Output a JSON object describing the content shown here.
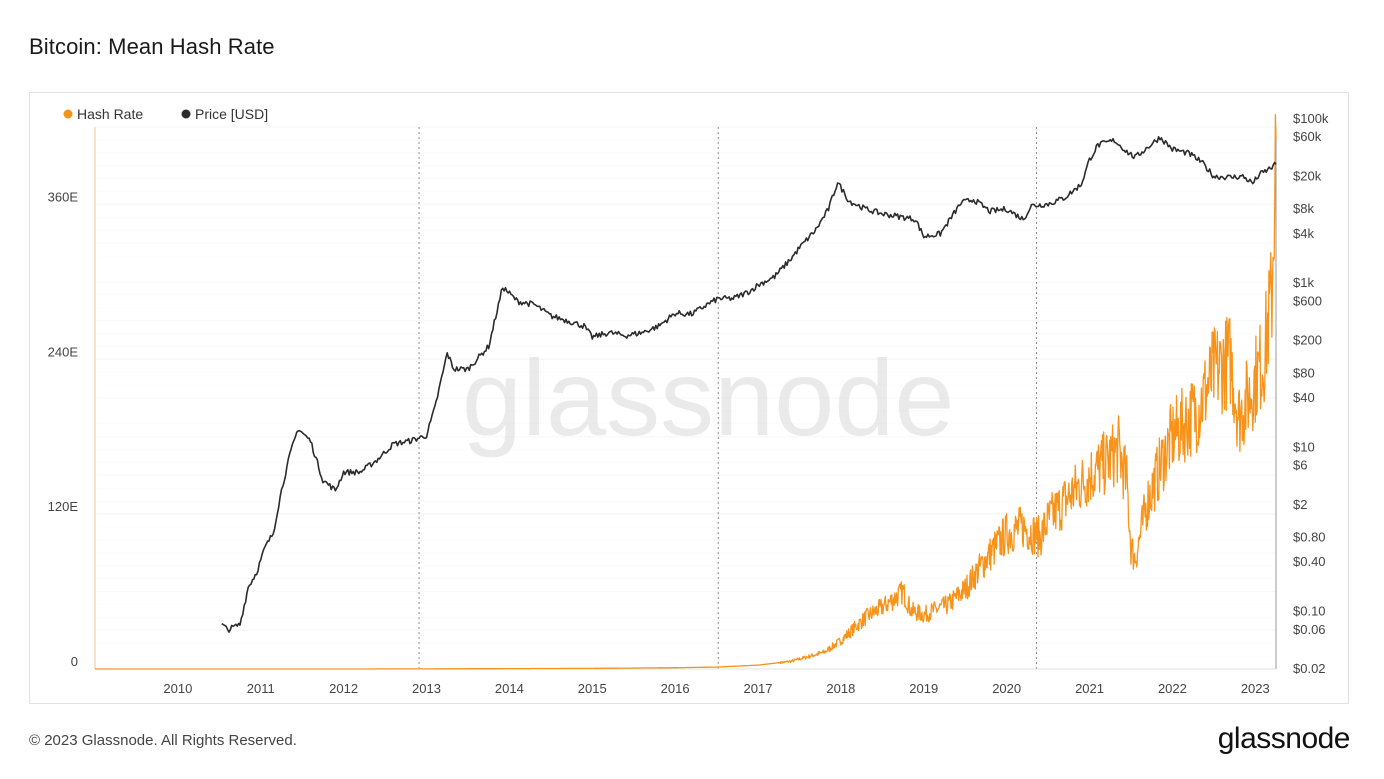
{
  "page": {
    "title": "Bitcoin: Mean Hash Rate",
    "copyright": "© 2023 Glassnode. All Rights Reserved.",
    "logo_text": "glassnode",
    "watermark_text": "glassnode"
  },
  "chart_data": {
    "type": "line",
    "title": "Bitcoin: Mean Hash Rate",
    "legend_position": "top-left",
    "grid": true,
    "x_ticks": [
      "2010",
      "2011",
      "2012",
      "2013",
      "2014",
      "2015",
      "2016",
      "2017",
      "2018",
      "2019",
      "2020",
      "2021",
      "2022",
      "2023"
    ],
    "xlim": [
      2009.0,
      2023.25
    ],
    "halving_lines": [
      2012.91,
      2016.52,
      2020.36
    ],
    "y_left": {
      "ticks": [
        "0",
        "120E",
        "240E",
        "360E"
      ],
      "tick_values": [
        0,
        120,
        240,
        360
      ],
      "ylim": [
        0,
        420
      ],
      "unit": "E"
    },
    "y_right": {
      "scale": "log",
      "ticks": [
        "$100k",
        "$60k",
        "$20k",
        "$8k",
        "$4k",
        "$1k",
        "$600",
        "$200",
        "$80",
        "$40",
        "$10",
        "$6",
        "$2",
        "$0.80",
        "$0.40",
        "$0.10",
        "$0.06",
        "$0.02"
      ],
      "tick_values": [
        100000,
        60000,
        20000,
        8000,
        4000,
        1000,
        600,
        200,
        80,
        40,
        10,
        6,
        2,
        0.8,
        0.4,
        0.1,
        0.06,
        0.02
      ],
      "ylim": [
        0.02,
        100000
      ]
    },
    "series": [
      {
        "name": "Hash Rate",
        "axis": "left",
        "color": "#f7931a",
        "volatile": true,
        "x": [
          2009.0,
          2010.0,
          2011.0,
          2012.0,
          2013.0,
          2014.0,
          2015.0,
          2016.0,
          2016.5,
          2017.0,
          2017.4,
          2017.8,
          2018.0,
          2018.3,
          2018.55,
          2018.75,
          2018.85,
          2019.0,
          2019.3,
          2019.5,
          2019.75,
          2020.0,
          2020.2,
          2020.4,
          2020.5,
          2020.7,
          2021.0,
          2021.2,
          2021.35,
          2021.45,
          2021.5,
          2021.55,
          2021.7,
          2021.9,
          2022.0,
          2022.3,
          2022.5,
          2022.7,
          2022.8,
          2022.95,
          2023.0,
          2023.1,
          2023.2,
          2023.25
        ],
        "y": [
          0,
          0,
          0,
          0,
          0.1,
          0.3,
          0.5,
          1,
          1.5,
          3,
          6,
          13,
          22,
          40,
          50,
          60,
          45,
          42,
          50,
          62,
          85,
          105,
          110,
          102,
          115,
          130,
          150,
          160,
          170,
          145,
          95,
          85,
          130,
          165,
          180,
          200,
          230,
          240,
          195,
          215,
          225,
          240,
          290,
          410
        ]
      },
      {
        "name": "Price [USD]",
        "axis": "right",
        "color": "#2b2b2b",
        "volatile": false,
        "x": [
          2010.53,
          2010.6,
          2010.75,
          2010.85,
          2010.95,
          2011.05,
          2011.15,
          2011.25,
          2011.35,
          2011.45,
          2011.6,
          2011.75,
          2011.9,
          2012.0,
          2012.2,
          2012.4,
          2012.6,
          2012.8,
          2012.91,
          2013.0,
          2013.1,
          2013.25,
          2013.33,
          2013.5,
          2013.75,
          2013.92,
          2014.1,
          2014.3,
          2014.5,
          2014.7,
          2014.9,
          2015.0,
          2015.2,
          2015.4,
          2015.6,
          2015.8,
          2016.0,
          2016.2,
          2016.4,
          2016.52,
          2016.7,
          2016.9,
          2017.0,
          2017.2,
          2017.4,
          2017.5,
          2017.7,
          2017.85,
          2017.96,
          2018.1,
          2018.3,
          2018.5,
          2018.7,
          2018.9,
          2019.0,
          2019.2,
          2019.45,
          2019.6,
          2019.8,
          2020.0,
          2020.2,
          2020.3,
          2020.5,
          2020.7,
          2020.9,
          2021.0,
          2021.1,
          2021.3,
          2021.45,
          2021.55,
          2021.7,
          2021.85,
          2022.0,
          2022.2,
          2022.35,
          2022.5,
          2022.7,
          2022.85,
          2022.97,
          2023.05,
          2023.15,
          2023.25
        ],
        "y": [
          0.07,
          0.06,
          0.07,
          0.2,
          0.3,
          0.6,
          0.9,
          3,
          8,
          17,
          12,
          4,
          3,
          5,
          5,
          7,
          11,
          12,
          13,
          14,
          30,
          140,
          90,
          90,
          170,
          900,
          600,
          550,
          400,
          350,
          300,
          220,
          250,
          230,
          250,
          300,
          430,
          420,
          560,
          650,
          650,
          800,
          950,
          1200,
          2000,
          2700,
          4500,
          8000,
          17000,
          10000,
          8000,
          7000,
          6500,
          6000,
          3700,
          4000,
          9500,
          10500,
          7500,
          8000,
          6000,
          8800,
          9200,
          11000,
          16000,
          32000,
          48000,
          55000,
          40000,
          34000,
          45000,
          60000,
          43000,
          38000,
          30000,
          20000,
          19500,
          20000,
          16500,
          21000,
          24000,
          28000
        ]
      }
    ]
  }
}
